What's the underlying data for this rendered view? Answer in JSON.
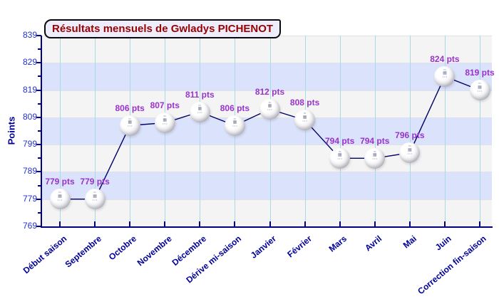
{
  "chart_data": {
    "type": "line",
    "title": "Résultats mensuels de Gwladys PICHENOT",
    "ylabel": "Points",
    "xlabel": "",
    "categories": [
      "Début saison",
      "Septembre",
      "Octobre",
      "Novembre",
      "Décembre",
      "Dérive mi-saison",
      "Janvier",
      "Février",
      "Mars",
      "Avril",
      "Mai",
      "Juin",
      "Correction fin-saison"
    ],
    "values": [
      779,
      779,
      806,
      807,
      811,
      806,
      812,
      808,
      794,
      794,
      796,
      824,
      819
    ],
    "value_suffix": " pts",
    "ylim": [
      769,
      839
    ],
    "yticks": [
      839,
      829,
      819,
      809,
      799,
      789,
      779,
      769
    ],
    "ytick_step": 10,
    "grid": "vertical cyan lines per category, horizontal alternating bands",
    "legend": "none",
    "marker": {
      "icon": "ball-marker",
      "logo_rows": [
        "ᶠᶠᵗᵗ",
        "▦",
        "• • •"
      ]
    }
  },
  "colors": {
    "title_text": "#990000",
    "title_box_bg": "#EDEDFC",
    "axis": "#000080",
    "y_tick_label": "#2233CC",
    "x_label": "#000099",
    "value_label": "#9933CC",
    "band_light": "#F4F4F5",
    "band_blue": "#DBE2FB",
    "grid_vertical": "#A7DAE4",
    "line": "#000066",
    "ball": "#FFFFFF"
  }
}
